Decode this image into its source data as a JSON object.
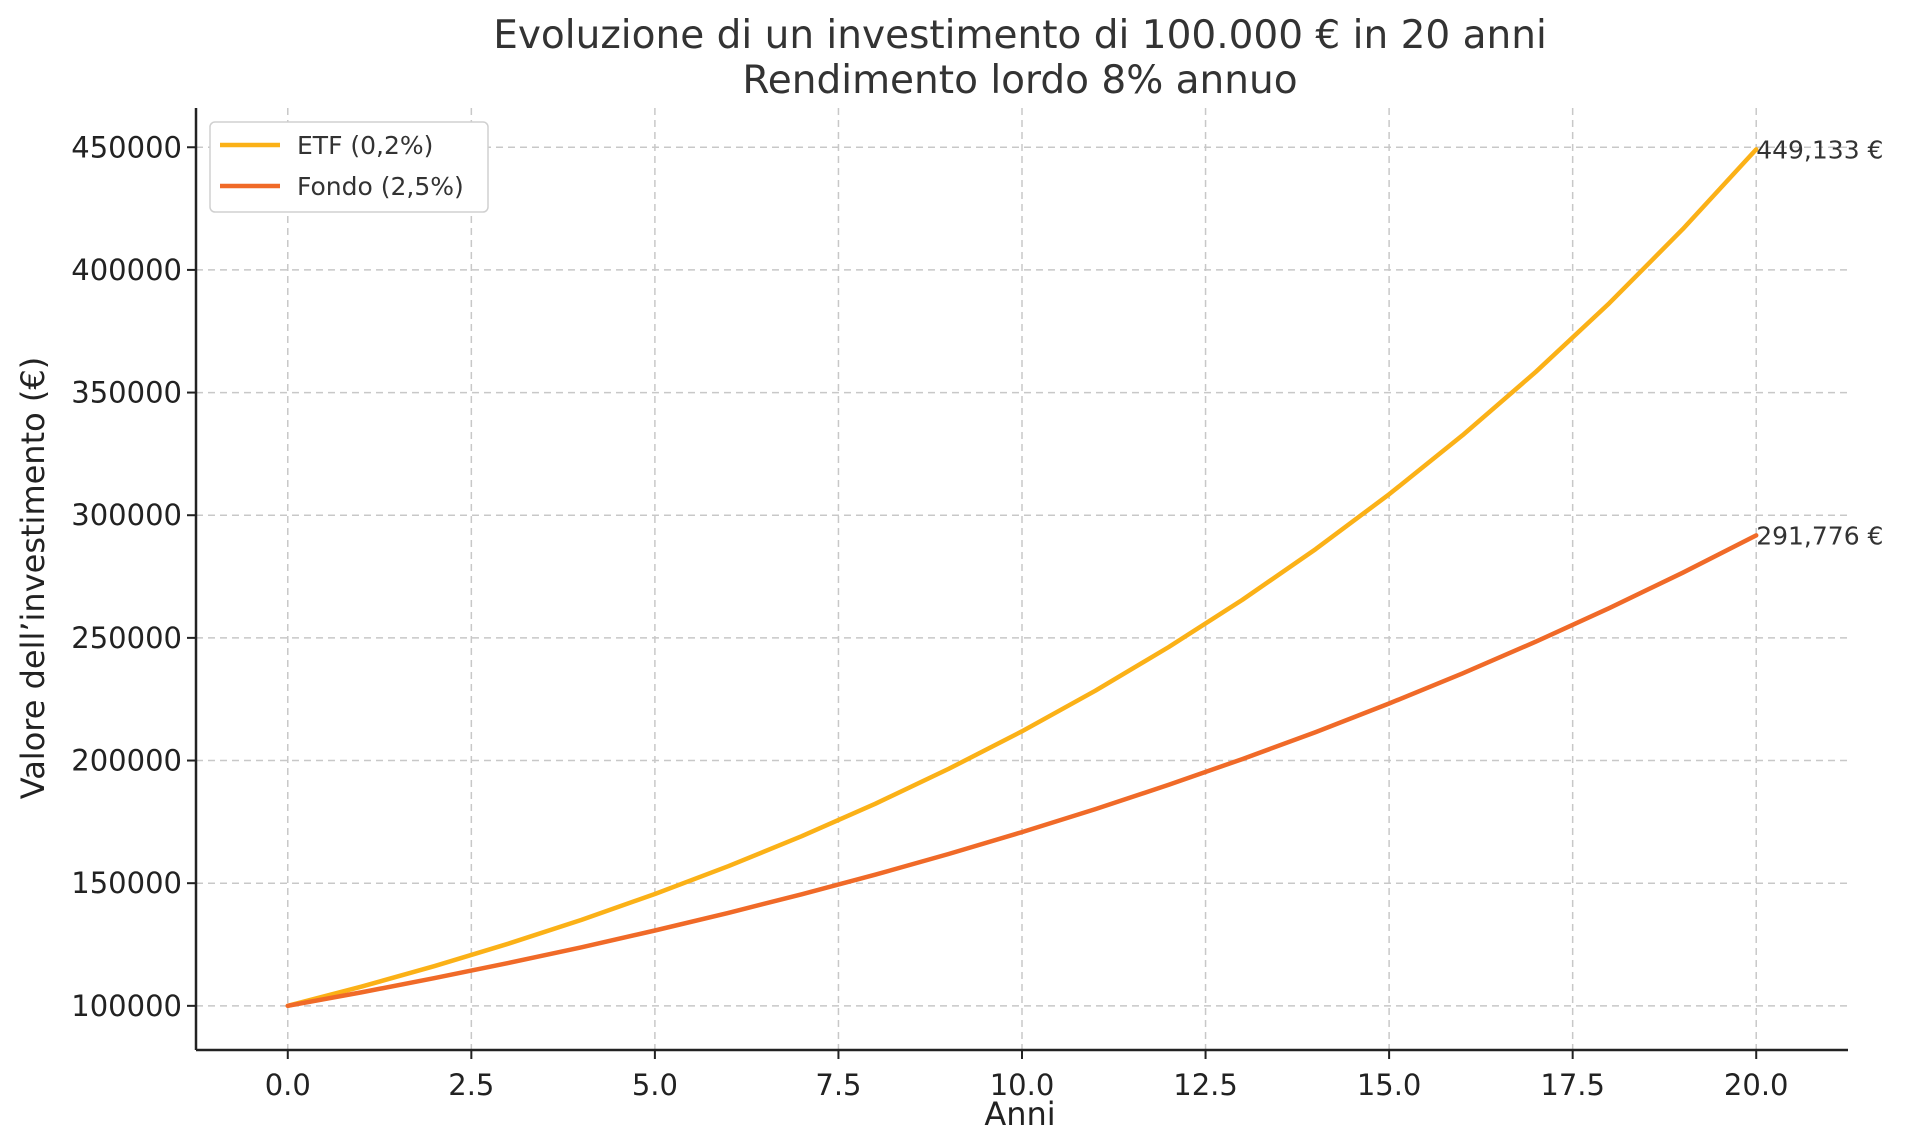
{
  "chart_data": {
    "type": "line",
    "title": "Evoluzione di un investimento di 100.000 € in 20 anni",
    "subtitle": "Rendimento lordo 8% annuo",
    "xlabel": "Anni",
    "ylabel": "Valore dell’investimento (€)",
    "xlim": [
      -1.25,
      21.25
    ],
    "ylim": [
      82000,
      466000
    ],
    "x_ticks": [
      0,
      2.5,
      5,
      7.5,
      10,
      12.5,
      15,
      17.5,
      20
    ],
    "x_tick_labels": [
      "0.0",
      "2.5",
      "5.0",
      "7.5",
      "10.0",
      "12.5",
      "15.0",
      "17.5",
      "20.0"
    ],
    "y_ticks": [
      100000,
      150000,
      200000,
      250000,
      300000,
      350000,
      400000,
      450000
    ],
    "y_tick_labels": [
      "100000",
      "150000",
      "200000",
      "250000",
      "300000",
      "350000",
      "400000",
      "450000"
    ],
    "grid": true,
    "legend_position": "top-left",
    "x": [
      0,
      1,
      2,
      3,
      4,
      5,
      6,
      7,
      8,
      9,
      10,
      11,
      12,
      13,
      14,
      15,
      16,
      17,
      18,
      19,
      20
    ],
    "series": [
      {
        "name": "ETF (0,2%)",
        "color": "#FBB117",
        "values": [
          100000,
          107800,
          116208,
          125272,
          135043,
          145577,
          156932,
          169172,
          182368,
          196593,
          211927,
          228457,
          246277,
          265487,
          286195,
          308518,
          332582,
          358524,
          386489,
          416635,
          449133
        ],
        "end_label": "449,133 €"
      },
      {
        "name": "Fondo (2,5%)",
        "color": "#F06A28",
        "values": [
          100000,
          105500,
          111303,
          117424,
          123883,
          130696,
          137885,
          145468,
          153469,
          161909,
          170814,
          180209,
          190120,
          200577,
          211609,
          223247,
          235526,
          248480,
          262146,
          276564,
          291776
        ],
        "end_label": "291,776 €"
      }
    ]
  }
}
